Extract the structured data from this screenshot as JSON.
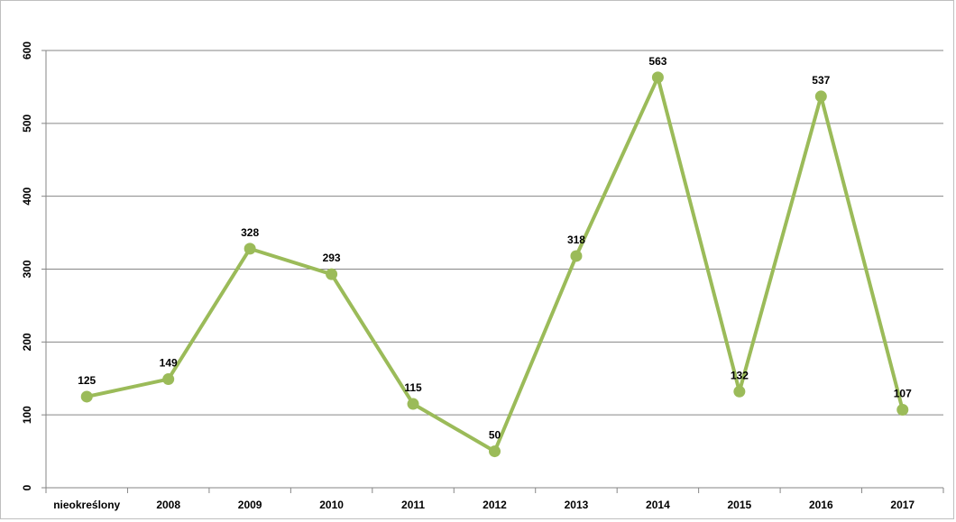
{
  "chart_data": {
    "type": "line",
    "categories": [
      "nieokreślony",
      "2008",
      "2009",
      "2010",
      "2011",
      "2012",
      "2013",
      "2014",
      "2015",
      "2016",
      "2017"
    ],
    "series": [
      {
        "values": [
          125,
          149,
          328,
          293,
          115,
          50,
          318,
          563,
          132,
          537,
          107
        ]
      }
    ],
    "data_labels": [
      "125",
      "149",
      "328",
      "293",
      "115",
      "50",
      "318",
      "563",
      "132",
      "537",
      "107"
    ],
    "ylim": [
      0,
      600
    ],
    "yticks": [
      "0",
      "100",
      "200",
      "300",
      "400",
      "500",
      "600"
    ],
    "ytick_values": [
      0,
      100,
      200,
      300,
      400,
      500,
      600
    ],
    "grid": true,
    "legend": "none",
    "colors": {
      "line": "#9bbb59",
      "marker": "#9bbb59",
      "grid": "#868686",
      "axis": "#868686"
    }
  }
}
